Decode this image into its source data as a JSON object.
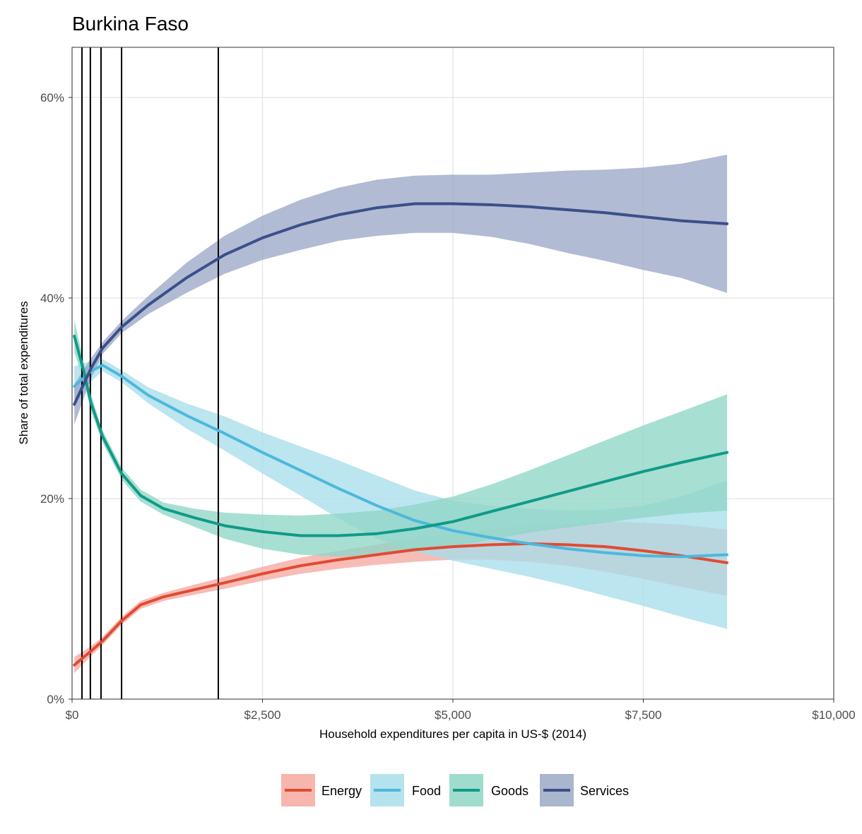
{
  "chart_data": {
    "type": "line",
    "title": "Burkina Faso",
    "xlabel": "Household expenditures per capita in US-$ (2014)",
    "ylabel": "Share of total expenditures",
    "xlim": [
      0,
      10000
    ],
    "ylim": [
      0,
      0.65
    ],
    "x_ticks": [
      0,
      2500,
      5000,
      7500,
      10000
    ],
    "x_tick_labels": [
      "$0",
      "$2,500",
      "$5,000",
      "$7,500",
      "$10,000"
    ],
    "y_ticks": [
      0,
      0.2,
      0.4,
      0.6
    ],
    "y_tick_labels": [
      "0%",
      "20%",
      "40%",
      "60%"
    ],
    "grid": true,
    "legend_position": "bottom",
    "vertical_lines": [
      130,
      240,
      380,
      650,
      1920
    ],
    "series": [
      {
        "name": "Energy",
        "color": "#e14b32",
        "band_color": "#f4a9a0",
        "x": [
          30,
          250,
          400,
          650,
          900,
          1200,
          1600,
          2000,
          2500,
          3000,
          3500,
          4000,
          4500,
          5000,
          5500,
          6000,
          6500,
          7000,
          7500,
          8000,
          8600
        ],
        "y": [
          0.034,
          0.048,
          0.058,
          0.078,
          0.094,
          0.102,
          0.109,
          0.116,
          0.125,
          0.133,
          0.139,
          0.144,
          0.149,
          0.152,
          0.154,
          0.155,
          0.154,
          0.152,
          0.148,
          0.143,
          0.136
        ],
        "lower": [
          0.026,
          0.043,
          0.054,
          0.074,
          0.09,
          0.098,
          0.104,
          0.11,
          0.118,
          0.125,
          0.13,
          0.134,
          0.137,
          0.139,
          0.139,
          0.137,
          0.133,
          0.127,
          0.12,
          0.112,
          0.103
        ],
        "upper": [
          0.042,
          0.053,
          0.062,
          0.082,
          0.098,
          0.106,
          0.114,
          0.122,
          0.132,
          0.141,
          0.148,
          0.154,
          0.161,
          0.165,
          0.169,
          0.173,
          0.175,
          0.177,
          0.176,
          0.174,
          0.169
        ]
      },
      {
        "name": "Food",
        "color": "#4db8db",
        "band_color": "#a8deea",
        "x": [
          30,
          250,
          400,
          650,
          1000,
          1500,
          2000,
          2500,
          3000,
          3500,
          4000,
          4500,
          5000,
          5500,
          6000,
          6500,
          7000,
          7500,
          8000,
          8600
        ],
        "y": [
          0.312,
          0.327,
          0.333,
          0.322,
          0.303,
          0.283,
          0.265,
          0.246,
          0.228,
          0.21,
          0.193,
          0.178,
          0.168,
          0.161,
          0.155,
          0.15,
          0.146,
          0.143,
          0.142,
          0.144
        ],
        "lower": [
          0.292,
          0.317,
          0.327,
          0.316,
          0.295,
          0.27,
          0.248,
          0.225,
          0.203,
          0.18,
          0.16,
          0.147,
          0.138,
          0.13,
          0.122,
          0.113,
          0.103,
          0.093,
          0.082,
          0.07
        ],
        "upper": [
          0.332,
          0.337,
          0.339,
          0.328,
          0.311,
          0.295,
          0.282,
          0.266,
          0.252,
          0.238,
          0.223,
          0.208,
          0.198,
          0.193,
          0.19,
          0.188,
          0.189,
          0.193,
          0.202,
          0.218
        ]
      },
      {
        "name": "Goods",
        "color": "#0f9b87",
        "band_color": "#8fd6c6",
        "x": [
          30,
          150,
          250,
          400,
          650,
          900,
          1200,
          1600,
          2000,
          2500,
          3000,
          3500,
          4000,
          4500,
          5000,
          5500,
          6000,
          6500,
          7000,
          7500,
          8000,
          8600
        ],
        "y": [
          0.362,
          0.328,
          0.295,
          0.262,
          0.225,
          0.203,
          0.19,
          0.181,
          0.173,
          0.167,
          0.163,
          0.163,
          0.165,
          0.17,
          0.177,
          0.187,
          0.197,
          0.207,
          0.217,
          0.227,
          0.236,
          0.246
        ],
        "lower": [
          0.346,
          0.318,
          0.287,
          0.256,
          0.219,
          0.197,
          0.184,
          0.172,
          0.16,
          0.15,
          0.144,
          0.142,
          0.143,
          0.147,
          0.152,
          0.159,
          0.166,
          0.171,
          0.176,
          0.181,
          0.185,
          0.188
        ],
        "upper": [
          0.378,
          0.338,
          0.303,
          0.268,
          0.231,
          0.209,
          0.196,
          0.19,
          0.186,
          0.184,
          0.183,
          0.185,
          0.188,
          0.194,
          0.202,
          0.214,
          0.228,
          0.243,
          0.258,
          0.273,
          0.287,
          0.304
        ]
      },
      {
        "name": "Services",
        "color": "#3b4f8a",
        "band_color": "#9ba8c6",
        "x": [
          30,
          250,
          400,
          650,
          1000,
          1500,
          2000,
          2500,
          3000,
          3500,
          4000,
          4500,
          5000,
          5500,
          6000,
          6500,
          7000,
          7500,
          8000,
          8600
        ],
        "y": [
          0.294,
          0.33,
          0.35,
          0.371,
          0.393,
          0.42,
          0.443,
          0.46,
          0.473,
          0.483,
          0.49,
          0.494,
          0.494,
          0.493,
          0.491,
          0.488,
          0.485,
          0.481,
          0.477,
          0.474
        ],
        "lower": [
          0.274,
          0.32,
          0.344,
          0.365,
          0.384,
          0.405,
          0.424,
          0.438,
          0.448,
          0.457,
          0.462,
          0.465,
          0.465,
          0.461,
          0.454,
          0.445,
          0.437,
          0.428,
          0.42,
          0.405
        ],
        "upper": [
          0.314,
          0.34,
          0.356,
          0.377,
          0.402,
          0.435,
          0.462,
          0.482,
          0.498,
          0.51,
          0.518,
          0.522,
          0.523,
          0.523,
          0.525,
          0.527,
          0.528,
          0.53,
          0.534,
          0.543
        ]
      }
    ]
  }
}
